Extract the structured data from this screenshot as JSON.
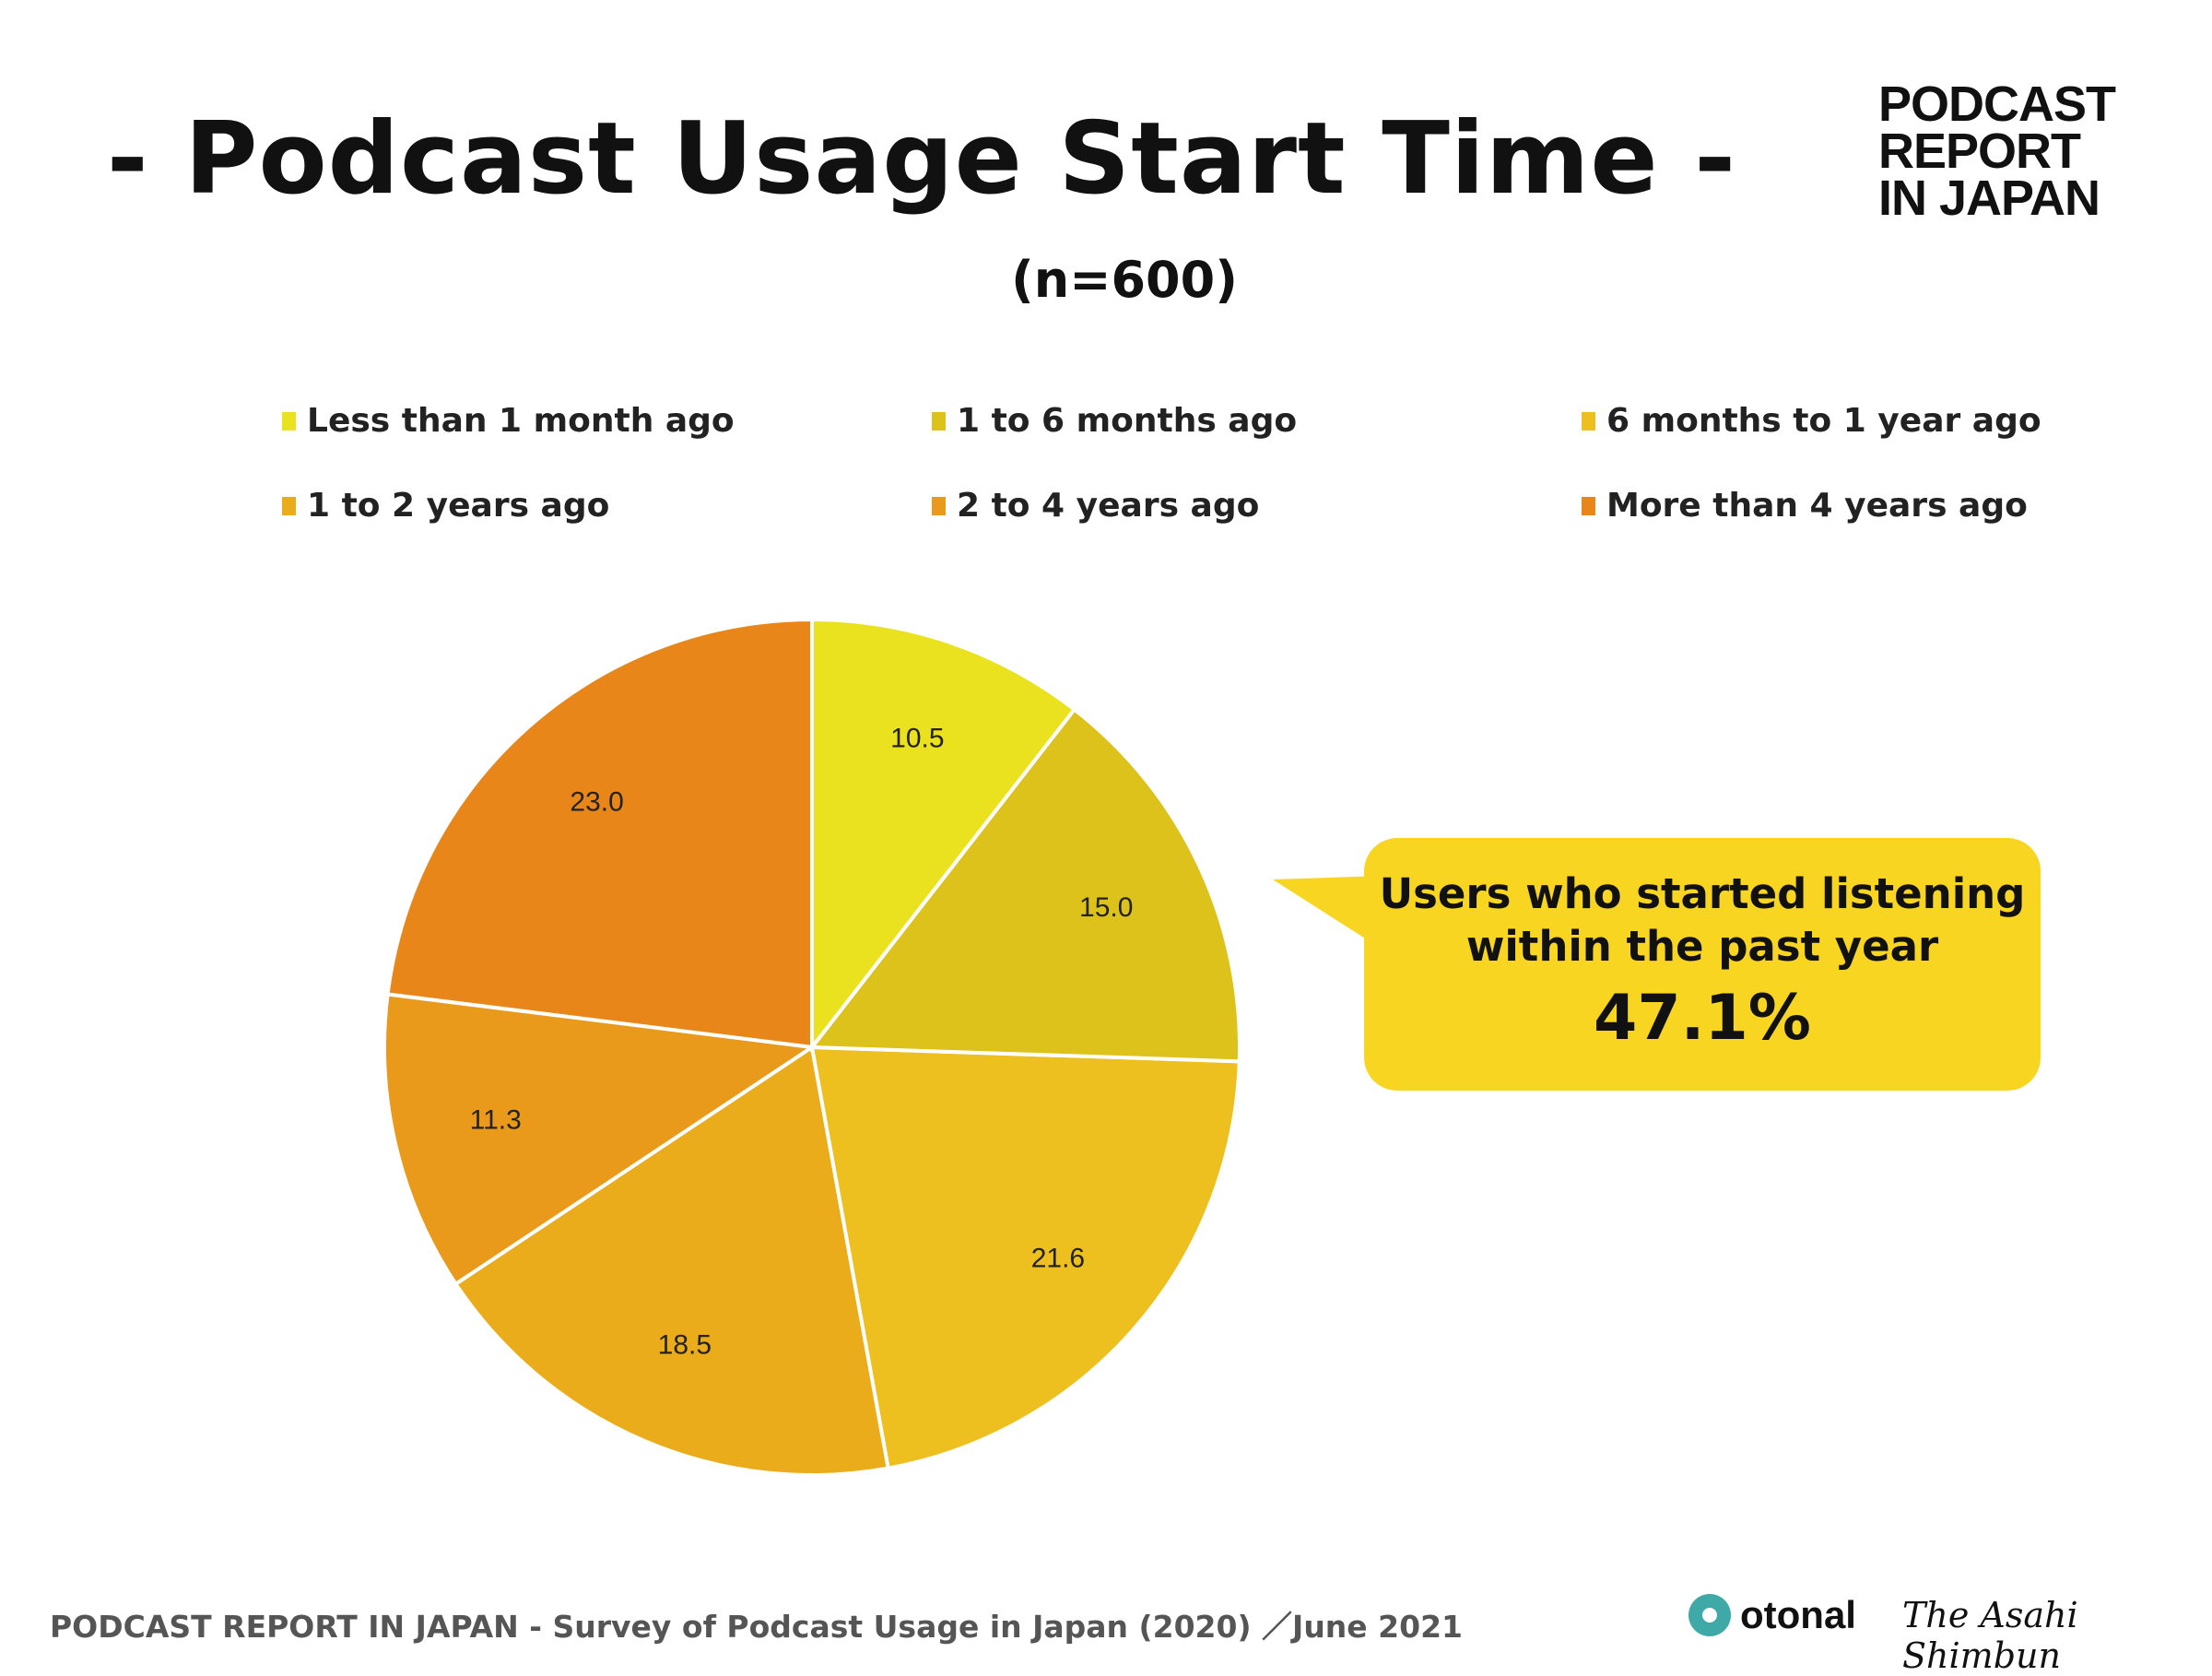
{
  "title": "- Podcast Usage Start Time -",
  "subtitle": "(n=600)",
  "logo": [
    "PODCAST",
    "REPORT",
    "IN JAPAN"
  ],
  "callout": {
    "line1": "Users who started listening",
    "line2": "within the past year",
    "value": "47.1%"
  },
  "footer": "PODCAST REPORT IN JAPAN - Survey of Podcast Usage in Japan (2020) ／June 2021",
  "brands": {
    "otonal": "otonal",
    "asahi": "The Asahi Shimbun"
  },
  "chart_data": {
    "type": "pie",
    "title": "- Podcast Usage Start Time -",
    "categories": [
      "Less than 1 month ago",
      "1 to 6 months ago",
      "6 months to 1 year ago",
      "1 to 2 years ago",
      "2 to 4 years ago",
      "More than 4 years ago"
    ],
    "values": [
      10.5,
      15.0,
      21.6,
      18.5,
      11.3,
      23.0
    ],
    "labels": [
      "10.5",
      "15.0",
      "21.6",
      "18.5",
      "11.3",
      "23.0"
    ],
    "colors": [
      "#EBE21F",
      "#DDC21C",
      "#EDBF1F",
      "#EBAC1B",
      "#E99A1B",
      "#E8861A"
    ],
    "legend_position": "top",
    "start": "12 o'clock, clockwise"
  }
}
